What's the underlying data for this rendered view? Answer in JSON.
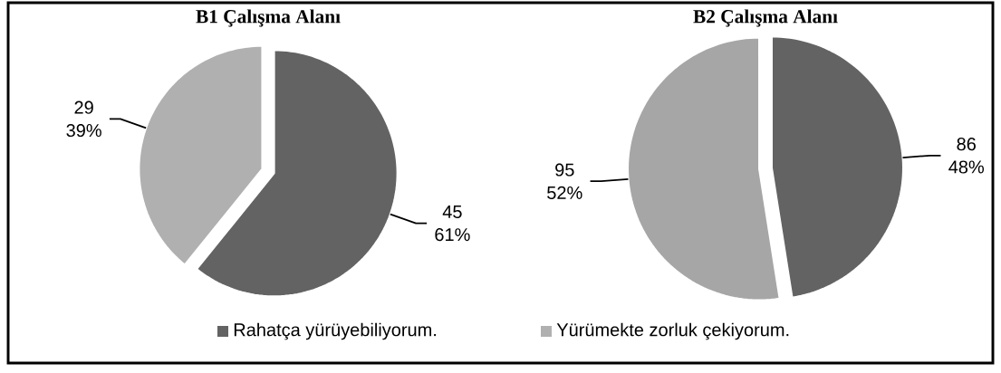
{
  "chart_data": [
    {
      "type": "pie",
      "title": "B1 Çalışma Alanı",
      "categories": [
        "Rahatça yürüyebiliyorum.",
        "Yürümekte zorluk çekiyorum."
      ],
      "values": [
        45,
        29
      ],
      "colors": [
        "#636363",
        "#b0b0b0"
      ],
      "value_labels": [
        "45 61%",
        "29 39%"
      ],
      "legend": "bottom"
    },
    {
      "type": "pie",
      "title": "B2 Çalışma Alanı",
      "categories": [
        null,
        null
      ],
      "values": [
        86,
        95
      ],
      "colors": [
        "#636363",
        "#a6a6a6"
      ],
      "value_labels": [
        "86 48%",
        "95 52%"
      ]
    }
  ]
}
